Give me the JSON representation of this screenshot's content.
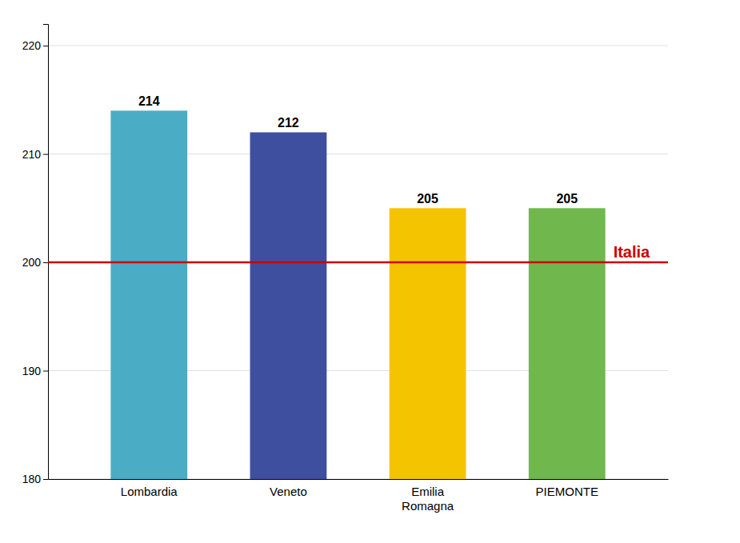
{
  "chart_data": {
    "type": "bar",
    "categories": [
      "Lombardia",
      "Veneto",
      "Emilia\nRomagna",
      "PIEMONTE"
    ],
    "values": [
      214,
      212,
      205,
      205
    ],
    "colors": [
      "#4BACC6",
      "#3F4FA0",
      "#F5C400",
      "#70B84E"
    ],
    "ylim": [
      180,
      222
    ],
    "yticks": [
      180,
      190,
      200,
      210,
      220
    ],
    "grid": true,
    "data_labels": true,
    "reference_line": {
      "value": 200,
      "label": "Italia",
      "color": "#CC0000"
    }
  }
}
